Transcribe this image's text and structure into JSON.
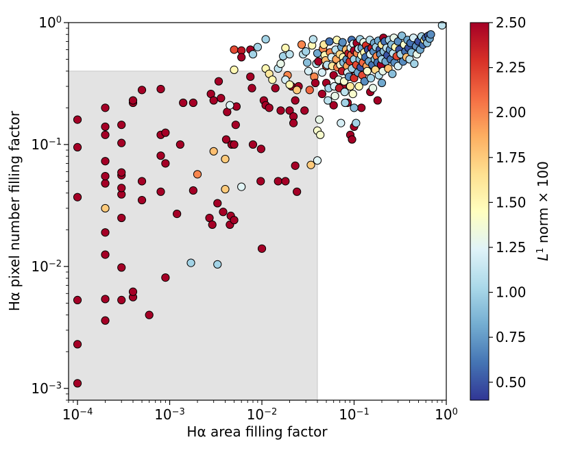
{
  "chart_data": {
    "type": "scatter",
    "title": "",
    "xlabel": "Hα area filling factor",
    "ylabel": "Hα pixel number filling factor",
    "xscale": "log",
    "yscale": "log",
    "xlim": [
      8e-05,
      1.0
    ],
    "ylim": [
      0.0008,
      1.0
    ],
    "x_ticks": [
      {
        "base": "10",
        "exp": "−4",
        "value": 0.0001
      },
      {
        "base": "10",
        "exp": "−3",
        "value": 0.001
      },
      {
        "base": "10",
        "exp": "−2",
        "value": 0.01
      },
      {
        "base": "10",
        "exp": "−1",
        "value": 0.1
      },
      {
        "base": "10",
        "exp": "0",
        "value": 1
      }
    ],
    "y_ticks": [
      {
        "base": "10",
        "exp": "−3",
        "value": 0.001
      },
      {
        "base": "10",
        "exp": "−2",
        "value": 0.01
      },
      {
        "base": "10",
        "exp": "−1",
        "value": 0.1
      },
      {
        "base": "10",
        "exp": "0",
        "value": 1
      }
    ],
    "shaded_region": {
      "x": [
        8e-05,
        0.04
      ],
      "y": [
        0.0008,
        0.4
      ],
      "color": "#e3e3e3"
    },
    "colorbar": {
      "label_main": "L",
      "label_sup": "1",
      "label_rest": " norm × 100",
      "vmin": 0.4,
      "vmax": 2.5,
      "ticks": [
        "0.50",
        "0.75",
        "1.00",
        "1.25",
        "1.50",
        "1.75",
        "2.00",
        "2.25",
        "2.50"
      ],
      "tick_values": [
        0.5,
        0.75,
        1.0,
        1.25,
        1.5,
        1.75,
        2.0,
        2.25,
        2.5
      ]
    },
    "colormap": [
      "#313695",
      "#4575b4",
      "#74add1",
      "#abd9e9",
      "#e0f3f8",
      "#ffffbf",
      "#fee090",
      "#fdae61",
      "#f46d43",
      "#d73027",
      "#a50026"
    ],
    "points": [
      [
        0.0001,
        0.0011,
        2.5
      ],
      [
        0.0001,
        0.0023,
        2.5
      ],
      [
        0.0001,
        0.0053,
        2.5
      ],
      [
        0.0001,
        0.037,
        2.5
      ],
      [
        0.0001,
        0.095,
        2.5
      ],
      [
        0.0001,
        0.16,
        2.5
      ],
      [
        0.0002,
        0.0036,
        2.5
      ],
      [
        0.0002,
        0.0054,
        2.5
      ],
      [
        0.0002,
        0.0125,
        2.5
      ],
      [
        0.0002,
        0.019,
        2.5
      ],
      [
        0.0002,
        0.03,
        1.75
      ],
      [
        0.0002,
        0.048,
        2.5
      ],
      [
        0.0002,
        0.055,
        2.5
      ],
      [
        0.0002,
        0.073,
        2.5
      ],
      [
        0.0002,
        0.12,
        2.5
      ],
      [
        0.0002,
        0.14,
        2.5
      ],
      [
        0.0002,
        0.2,
        2.5
      ],
      [
        0.0003,
        0.0053,
        2.5
      ],
      [
        0.0003,
        0.0098,
        2.5
      ],
      [
        0.0003,
        0.025,
        2.5
      ],
      [
        0.0003,
        0.039,
        2.5
      ],
      [
        0.0003,
        0.044,
        2.5
      ],
      [
        0.0003,
        0.056,
        2.5
      ],
      [
        0.0003,
        0.059,
        2.5
      ],
      [
        0.0003,
        0.103,
        2.5
      ],
      [
        0.0003,
        0.145,
        2.5
      ],
      [
        0.0004,
        0.0056,
        2.5
      ],
      [
        0.0004,
        0.0062,
        2.5
      ],
      [
        0.0004,
        0.22,
        2.5
      ],
      [
        0.0004,
        0.23,
        2.5
      ],
      [
        0.0005,
        0.035,
        2.5
      ],
      [
        0.0005,
        0.05,
        2.5
      ],
      [
        0.0005,
        0.28,
        2.5
      ],
      [
        0.0006,
        0.004,
        2.5
      ],
      [
        0.0008,
        0.041,
        2.5
      ],
      [
        0.0008,
        0.081,
        2.5
      ],
      [
        0.0008,
        0.12,
        2.5
      ],
      [
        0.0008,
        0.285,
        2.5
      ],
      [
        0.0009,
        0.0081,
        2.5
      ],
      [
        0.0009,
        0.07,
        2.5
      ],
      [
        0.0009,
        0.125,
        2.5
      ],
      [
        0.0012,
        0.027,
        2.5
      ],
      [
        0.0013,
        0.1,
        2.5
      ],
      [
        0.0014,
        0.22,
        2.5
      ],
      [
        0.0017,
        0.0107,
        1.0
      ],
      [
        0.0018,
        0.042,
        2.5
      ],
      [
        0.0018,
        0.22,
        2.5
      ],
      [
        0.002,
        0.057,
        2.0
      ],
      [
        0.0027,
        0.025,
        2.5
      ],
      [
        0.0028,
        0.26,
        2.5
      ],
      [
        0.0029,
        0.022,
        2.5
      ],
      [
        0.003,
        0.088,
        1.8
      ],
      [
        0.003,
        0.23,
        2.5
      ],
      [
        0.0033,
        0.0104,
        1.0
      ],
      [
        0.0033,
        0.033,
        2.5
      ],
      [
        0.0034,
        0.33,
        2.5
      ],
      [
        0.0036,
        0.24,
        2.5
      ],
      [
        0.0038,
        0.028,
        2.5
      ],
      [
        0.004,
        0.043,
        1.75
      ],
      [
        0.004,
        0.076,
        1.75
      ],
      [
        0.0041,
        0.11,
        2.5
      ],
      [
        0.0042,
        0.185,
        2.5
      ],
      [
        0.0045,
        0.022,
        2.5
      ],
      [
        0.0046,
        0.026,
        2.5
      ],
      [
        0.0047,
        0.1,
        2.5
      ],
      [
        0.005,
        0.1,
        2.5
      ],
      [
        0.005,
        0.024,
        2.5
      ],
      [
        0.0052,
        0.145,
        2.5
      ],
      [
        0.0053,
        0.205,
        2.5
      ],
      [
        0.006,
        0.045,
        1.25
      ],
      [
        0.0045,
        0.21,
        1.25
      ],
      [
        0.0075,
        0.36,
        2.5
      ],
      [
        0.0078,
        0.29,
        2.5
      ],
      [
        0.008,
        0.1,
        2.5
      ],
      [
        0.0097,
        0.05,
        2.5
      ],
      [
        0.0098,
        0.092,
        2.5
      ],
      [
        0.01,
        0.014,
        2.5
      ],
      [
        0.0105,
        0.23,
        2.5
      ],
      [
        0.011,
        0.21,
        2.5
      ],
      [
        0.012,
        0.2,
        2.5
      ],
      [
        0.015,
        0.05,
        2.5
      ],
      [
        0.016,
        0.19,
        2.5
      ],
      [
        0.018,
        0.05,
        2.5
      ],
      [
        0.019,
        0.37,
        2.0
      ],
      [
        0.02,
        0.19,
        2.5
      ],
      [
        0.021,
        0.3,
        2.5
      ],
      [
        0.022,
        0.17,
        2.5
      ],
      [
        0.022,
        0.15,
        2.5
      ],
      [
        0.023,
        0.067,
        2.5
      ],
      [
        0.024,
        0.041,
        2.5
      ],
      [
        0.025,
        0.3,
        2.5
      ],
      [
        0.029,
        0.19,
        2.5
      ],
      [
        0.034,
        0.068,
        1.75
      ],
      [
        0.04,
        0.074,
        1.25
      ],
      [
        0.045,
        0.26,
        2.5
      ],
      [
        0.05,
        0.32,
        2.5
      ],
      [
        0.06,
        0.21,
        2.5
      ],
      [
        0.075,
        0.3,
        2.5
      ],
      [
        0.085,
        0.22,
        2.5
      ],
      [
        0.091,
        0.12,
        2.5
      ],
      [
        0.095,
        0.11,
        2.5
      ],
      [
        0.1,
        0.14,
        2.5
      ],
      [
        0.12,
        0.2,
        2.5
      ],
      [
        0.14,
        0.41,
        2.5
      ],
      [
        0.18,
        0.23,
        2.5
      ],
      [
        0.24,
        0.5,
        2.5
      ],
      [
        0.15,
        0.27,
        2.5
      ],
      [
        0.09,
        0.4,
        2.5
      ],
      [
        0.005,
        0.6,
        2.2
      ],
      [
        0.006,
        0.59,
        2.4
      ],
      [
        0.0075,
        0.6,
        2.5
      ],
      [
        0.006,
        0.52,
        2.5
      ],
      [
        0.005,
        0.41,
        1.5
      ],
      [
        0.008,
        0.55,
        1.0
      ],
      [
        0.009,
        0.63,
        1.0
      ],
      [
        0.011,
        0.73,
        1.0
      ],
      [
        0.011,
        0.42,
        1.5
      ],
      [
        0.012,
        0.38,
        1.6
      ],
      [
        0.013,
        0.34,
        1.5
      ],
      [
        0.014,
        0.29,
        2.5
      ],
      [
        0.015,
        0.42,
        1.1
      ],
      [
        0.016,
        0.46,
        1.3
      ],
      [
        0.017,
        0.53,
        1.0
      ],
      [
        0.018,
        0.62,
        1.5
      ],
      [
        0.02,
        0.55,
        1.1
      ],
      [
        0.018,
        0.34,
        1.2
      ],
      [
        0.02,
        0.31,
        1.5
      ],
      [
        0.023,
        0.23,
        2.5
      ],
      [
        0.024,
        0.28,
        1.75
      ],
      [
        0.027,
        0.66,
        2.0
      ],
      [
        0.028,
        0.55,
        1.1
      ],
      [
        0.03,
        0.58,
        1.0
      ],
      [
        0.031,
        0.47,
        0.9
      ],
      [
        0.032,
        0.4,
        1.2
      ],
      [
        0.033,
        0.28,
        2.1
      ],
      [
        0.035,
        0.65,
        1.5
      ],
      [
        0.036,
        0.73,
        1.1
      ],
      [
        0.037,
        0.36,
        2.0
      ],
      [
        0.038,
        0.32,
        2.5
      ],
      [
        0.039,
        0.46,
        1.1
      ],
      [
        0.04,
        0.56,
        0.8
      ],
      [
        0.04,
        0.13,
        1.4
      ],
      [
        0.041,
        0.48,
        2.5
      ],
      [
        0.042,
        0.16,
        1.3
      ],
      [
        0.043,
        0.12,
        1.4
      ],
      [
        0.045,
        0.39,
        1.2
      ],
      [
        0.046,
        0.61,
        2.0
      ],
      [
        0.047,
        0.66,
        1.6
      ],
      [
        0.048,
        0.54,
        1.5
      ],
      [
        0.049,
        0.49,
        1.8
      ],
      [
        0.05,
        0.44,
        2.2
      ],
      [
        0.051,
        0.45,
        1.1
      ],
      [
        0.052,
        0.23,
        1.1
      ],
      [
        0.053,
        0.29,
        1.0
      ],
      [
        0.054,
        0.7,
        0.6
      ],
      [
        0.055,
        0.57,
        2.0
      ],
      [
        0.057,
        0.52,
        1.2
      ],
      [
        0.058,
        0.44,
        1.6
      ],
      [
        0.06,
        0.37,
        2.5
      ],
      [
        0.061,
        0.3,
        1.2
      ],
      [
        0.062,
        0.25,
        1.3
      ],
      [
        0.063,
        0.6,
        1.1
      ],
      [
        0.064,
        0.5,
        1.9
      ],
      [
        0.065,
        0.72,
        1.5
      ],
      [
        0.066,
        0.43,
        2.0
      ],
      [
        0.068,
        0.34,
        1.3
      ],
      [
        0.069,
        0.29,
        2.4
      ],
      [
        0.07,
        0.55,
        1.7
      ],
      [
        0.071,
        0.45,
        1.4
      ],
      [
        0.072,
        0.15,
        1.2
      ],
      [
        0.073,
        0.63,
        0.8
      ],
      [
        0.074,
        0.4,
        2.4
      ],
      [
        0.075,
        0.69,
        0.7
      ],
      [
        0.076,
        0.52,
        1.5
      ],
      [
        0.077,
        0.47,
        0.9
      ],
      [
        0.078,
        0.33,
        1.4
      ],
      [
        0.079,
        0.27,
        1.1
      ],
      [
        0.08,
        0.22,
        1.0
      ],
      [
        0.082,
        0.6,
        1.8
      ],
      [
        0.083,
        0.5,
        0.7
      ],
      [
        0.084,
        0.44,
        1.9
      ],
      [
        0.085,
        0.39,
        1.2
      ],
      [
        0.087,
        0.56,
        2.4
      ],
      [
        0.088,
        0.36,
        0.7
      ],
      [
        0.09,
        0.48,
        2.3
      ],
      [
        0.091,
        0.3,
        1.6
      ],
      [
        0.092,
        0.62,
        1.2
      ],
      [
        0.093,
        0.54,
        2.1
      ],
      [
        0.094,
        0.72,
        0.6
      ],
      [
        0.095,
        0.42,
        1.0
      ],
      [
        0.097,
        0.26,
        1.4
      ],
      [
        0.098,
        0.67,
        1.2
      ],
      [
        0.1,
        0.59,
        2.5
      ],
      [
        0.1,
        0.5,
        1.0
      ],
      [
        0.1,
        0.35,
        2.3
      ],
      [
        0.1,
        0.2,
        0.9
      ],
      [
        0.105,
        0.15,
        1.0
      ],
      [
        0.106,
        0.45,
        2.2
      ],
      [
        0.107,
        0.68,
        2.5
      ],
      [
        0.108,
        0.56,
        2.0
      ],
      [
        0.11,
        0.39,
        0.8
      ],
      [
        0.112,
        0.61,
        1.1
      ],
      [
        0.113,
        0.3,
        1.5
      ],
      [
        0.115,
        0.5,
        0.9
      ],
      [
        0.116,
        0.73,
        1.0
      ],
      [
        0.118,
        0.43,
        0.5
      ],
      [
        0.12,
        0.54,
        1.4
      ],
      [
        0.121,
        0.62,
        0.8
      ],
      [
        0.123,
        0.37,
        2.2
      ],
      [
        0.125,
        0.47,
        2.1
      ],
      [
        0.127,
        0.69,
        1.3
      ],
      [
        0.129,
        0.57,
        1.5
      ],
      [
        0.13,
        0.33,
        0.7
      ],
      [
        0.133,
        0.52,
        0.6
      ],
      [
        0.135,
        0.65,
        2.3
      ],
      [
        0.137,
        0.44,
        1.9
      ],
      [
        0.139,
        0.4,
        1.4
      ],
      [
        0.142,
        0.6,
        0.5
      ],
      [
        0.145,
        0.48,
        0.8
      ],
      [
        0.148,
        0.72,
        1.1
      ],
      [
        0.15,
        0.55,
        1.2
      ],
      [
        0.152,
        0.35,
        1.0
      ],
      [
        0.155,
        0.62,
        2.4
      ],
      [
        0.158,
        0.45,
        0.6
      ],
      [
        0.16,
        0.29,
        1.3
      ],
      [
        0.163,
        0.58,
        0.7
      ],
      [
        0.165,
        0.68,
        0.8
      ],
      [
        0.168,
        0.5,
        0.9
      ],
      [
        0.17,
        0.41,
        1.7
      ],
      [
        0.173,
        0.63,
        1.0
      ],
      [
        0.176,
        0.53,
        2.0
      ],
      [
        0.18,
        0.47,
        0.6
      ],
      [
        0.183,
        0.71,
        0.8
      ],
      [
        0.186,
        0.37,
        1.1
      ],
      [
        0.19,
        0.6,
        0.5
      ],
      [
        0.193,
        0.55,
        0.7
      ],
      [
        0.196,
        0.45,
        2.5
      ],
      [
        0.2,
        0.66,
        1.6
      ],
      [
        0.2,
        0.5,
        1.0
      ],
      [
        0.2,
        0.32,
        0.8
      ],
      [
        0.205,
        0.4,
        1.3
      ],
      [
        0.208,
        0.75,
        2.5
      ],
      [
        0.21,
        0.58,
        0.9
      ],
      [
        0.215,
        0.7,
        0.6
      ],
      [
        0.22,
        0.48,
        0.8
      ],
      [
        0.225,
        0.62,
        1.1
      ],
      [
        0.23,
        0.54,
        0.5
      ],
      [
        0.235,
        0.42,
        1.8
      ],
      [
        0.24,
        0.72,
        1.0
      ],
      [
        0.245,
        0.6,
        0.7
      ],
      [
        0.25,
        0.5,
        0.6
      ],
      [
        0.255,
        0.66,
        0.9
      ],
      [
        0.26,
        0.38,
        0.9
      ],
      [
        0.265,
        0.56,
        1.1
      ],
      [
        0.27,
        0.75,
        1.3
      ],
      [
        0.275,
        0.47,
        0.7
      ],
      [
        0.28,
        0.63,
        1.5
      ],
      [
        0.29,
        0.53,
        2.2
      ],
      [
        0.3,
        0.7,
        0.7
      ],
      [
        0.3,
        0.44,
        1.2
      ],
      [
        0.31,
        0.6,
        0.5
      ],
      [
        0.32,
        0.55,
        1.0
      ],
      [
        0.33,
        0.78,
        0.9
      ],
      [
        0.34,
        0.48,
        0.7
      ],
      [
        0.35,
        0.66,
        1.4
      ],
      [
        0.36,
        0.58,
        0.6
      ],
      [
        0.37,
        0.52,
        1.8
      ],
      [
        0.38,
        0.72,
        0.8
      ],
      [
        0.39,
        0.62,
        0.5
      ],
      [
        0.4,
        0.5,
        1.1
      ],
      [
        0.41,
        0.68,
        0.6
      ],
      [
        0.42,
        0.57,
        0.9
      ],
      [
        0.44,
        0.75,
        1.2
      ],
      [
        0.45,
        0.46,
        1.0
      ],
      [
        0.47,
        0.64,
        0.7
      ],
      [
        0.48,
        0.55,
        1.3
      ],
      [
        0.5,
        0.7,
        0.5
      ],
      [
        0.52,
        0.6,
        0.8
      ],
      [
        0.54,
        0.77,
        1.0
      ],
      [
        0.56,
        0.66,
        0.6
      ],
      [
        0.58,
        0.72,
        1.5
      ],
      [
        0.6,
        0.75,
        0.6
      ],
      [
        0.62,
        0.68,
        0.9
      ],
      [
        0.64,
        0.78,
        0.5
      ],
      [
        0.66,
        0.74,
        0.8
      ],
      [
        0.68,
        0.8,
        0.7
      ],
      [
        0.9,
        0.95,
        1.1
      ]
    ]
  }
}
